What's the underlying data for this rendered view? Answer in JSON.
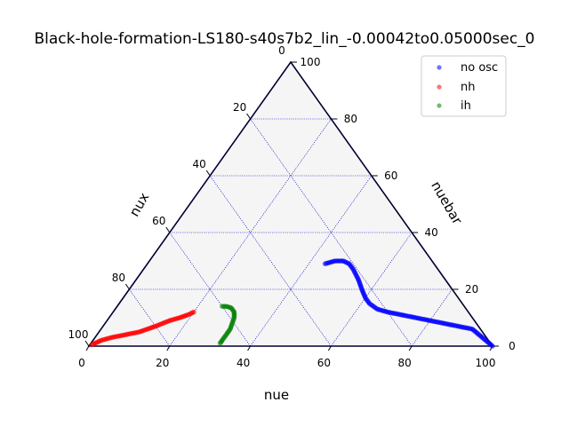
{
  "chart_data": {
    "type": "scatter",
    "subtype": "ternary",
    "title": "Black-hole-formation-LS180-s40s7b2_lin_-0.00042to0.05000sec_0",
    "axes": {
      "bottom": {
        "label": "nue",
        "ticks": [
          0,
          20,
          40,
          60,
          80,
          100
        ]
      },
      "left": {
        "label": "nux",
        "ticks": [
          20,
          40,
          60,
          80,
          100
        ]
      },
      "right": {
        "label": "nuebar",
        "ticks": [
          0,
          20,
          40,
          60,
          80,
          100
        ]
      }
    },
    "top_tick_label": "0",
    "background_color": "#f5f5f5",
    "grid": true,
    "grid_color": "#0000cc",
    "legend_position": "top-right",
    "series": [
      {
        "name": "no osc",
        "color": "#0000ff",
        "points": [
          {
            "nue": 100,
            "nux": 0,
            "nuebar": 0
          },
          {
            "nue": 98,
            "nux": 0.5,
            "nuebar": 1.5
          },
          {
            "nue": 96,
            "nux": 1,
            "nuebar": 3
          },
          {
            "nue": 94,
            "nux": 1.5,
            "nuebar": 4.5
          },
          {
            "nue": 92,
            "nux": 2,
            "nuebar": 6
          },
          {
            "nue": 88,
            "nux": 5,
            "nuebar": 7
          },
          {
            "nue": 84,
            "nux": 8,
            "nuebar": 8
          },
          {
            "nue": 80,
            "nux": 11,
            "nuebar": 9
          },
          {
            "nue": 76,
            "nux": 14,
            "nuebar": 10
          },
          {
            "nue": 72,
            "nux": 17,
            "nuebar": 11
          },
          {
            "nue": 68,
            "nux": 20,
            "nuebar": 12
          },
          {
            "nue": 65,
            "nux": 22,
            "nuebar": 13
          },
          {
            "nue": 62,
            "nux": 23,
            "nuebar": 15
          },
          {
            "nue": 60,
            "nux": 23,
            "nuebar": 17
          },
          {
            "nue": 58,
            "nux": 22.5,
            "nuebar": 19.5
          },
          {
            "nue": 55,
            "nux": 21.5,
            "nuebar": 23.5
          },
          {
            "nue": 52,
            "nux": 21,
            "nuebar": 27
          },
          {
            "nue": 50,
            "nux": 21,
            "nuebar": 29
          },
          {
            "nue": 48,
            "nux": 22,
            "nuebar": 30
          },
          {
            "nue": 46,
            "nux": 24,
            "nuebar": 30
          },
          {
            "nue": 45,
            "nux": 25.5,
            "nuebar": 29.5
          },
          {
            "nue": 44,
            "nux": 27,
            "nuebar": 29
          }
        ]
      },
      {
        "name": "nh",
        "color": "#ff0000",
        "points": [
          {
            "nue": 0.5,
            "nux": 99,
            "nuebar": 0.5
          },
          {
            "nue": 2,
            "nux": 96,
            "nuebar": 2
          },
          {
            "nue": 4,
            "nux": 93,
            "nuebar": 3
          },
          {
            "nue": 7,
            "nux": 89,
            "nuebar": 4
          },
          {
            "nue": 10,
            "nux": 85,
            "nuebar": 5
          },
          {
            "nue": 13,
            "nux": 80,
            "nuebar": 7
          },
          {
            "nue": 15.5,
            "nux": 75.5,
            "nuebar": 9
          },
          {
            "nue": 17.5,
            "nux": 72.5,
            "nuebar": 10
          },
          {
            "nue": 19,
            "nux": 70,
            "nuebar": 11
          },
          {
            "nue": 20,
            "nux": 68,
            "nuebar": 12
          }
        ]
      },
      {
        "name": "ih",
        "color": "#008000",
        "points": [
          {
            "nue": 32,
            "nux": 67,
            "nuebar": 1
          },
          {
            "nue": 32,
            "nux": 66,
            "nuebar": 2
          },
          {
            "nue": 32,
            "nux": 64,
            "nuebar": 4
          },
          {
            "nue": 32,
            "nux": 62,
            "nuebar": 6
          },
          {
            "nue": 31,
            "nux": 59,
            "nuebar": 10
          },
          {
            "nue": 30,
            "nux": 58,
            "nuebar": 12
          },
          {
            "nue": 28.5,
            "nux": 58,
            "nuebar": 13.5
          },
          {
            "nue": 27,
            "nux": 59,
            "nuebar": 14
          },
          {
            "nue": 26,
            "nux": 60,
            "nuebar": 14
          }
        ]
      }
    ]
  }
}
